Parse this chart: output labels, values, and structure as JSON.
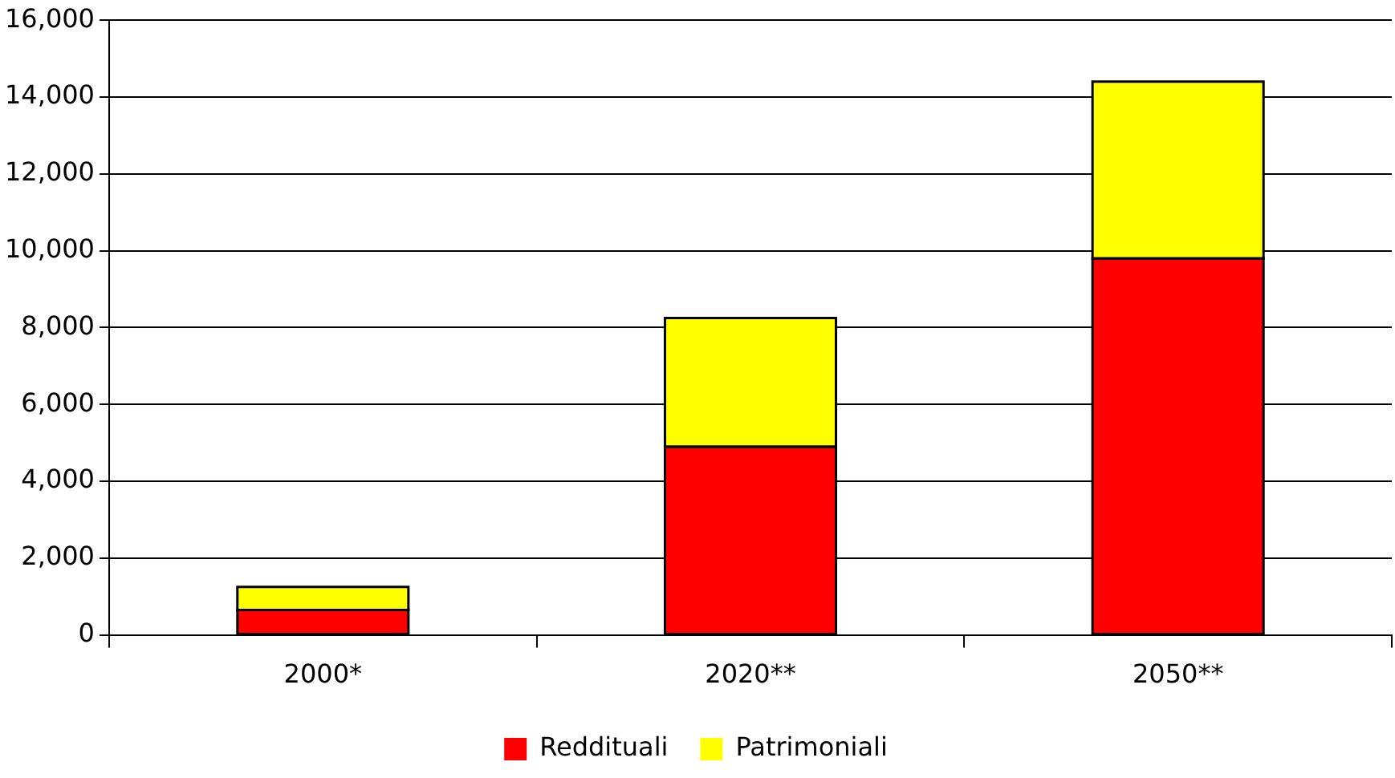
{
  "chart_data": {
    "type": "bar",
    "stacked": true,
    "categories": [
      "2000*",
      "2020**",
      "2050**"
    ],
    "series": [
      {
        "name": "Reddituali",
        "color": "#ff0000",
        "values": [
          650,
          4900,
          9800
        ]
      },
      {
        "name": "Patrimoniali",
        "color": "#ffff00",
        "values": [
          600,
          3350,
          4600
        ]
      }
    ],
    "ylim": [
      0,
      16000
    ],
    "yticks": [
      {
        "value": 0,
        "label": "0"
      },
      {
        "value": 2000,
        "label": "2,000"
      },
      {
        "value": 4000,
        "label": "4,000"
      },
      {
        "value": 6000,
        "label": "6,000"
      },
      {
        "value": 8000,
        "label": "8,000"
      },
      {
        "value": 10000,
        "label": "10,000"
      },
      {
        "value": 12000,
        "label": "12,000"
      },
      {
        "value": 14000,
        "label": "14,000"
      },
      {
        "value": 16000,
        "label": "16,000"
      }
    ],
    "grid": "y",
    "legend": "bottom"
  }
}
